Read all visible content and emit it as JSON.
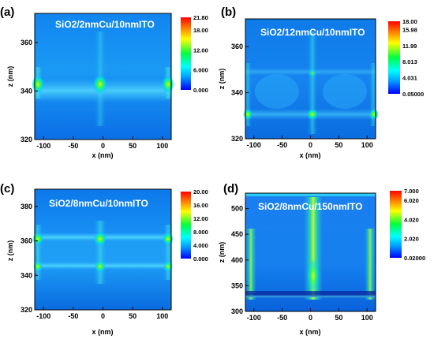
{
  "chart_data": [
    {
      "type": "heatmap",
      "panel_label": "(a)",
      "title": "SiO2/2nmCu/10nmITO",
      "xlabel": "x (nm)",
      "ylabel": "z (nm)",
      "xlim": [
        -115,
        115
      ],
      "ylim": [
        320,
        372
      ],
      "xticks": [
        "-100",
        "-50",
        "0",
        "50",
        "100"
      ],
      "xtick_values": [
        -100,
        -50,
        0,
        50,
        100
      ],
      "yticks": [
        "320",
        "340",
        "360"
      ],
      "ytick_values": [
        320,
        340,
        360
      ],
      "colorbar_ticks": [
        "21.80",
        "18.00",
        "12.00",
        "6.000",
        "0.000"
      ],
      "colorbar_values": [
        21.8,
        18.0,
        12.0,
        6.0,
        0.0
      ],
      "colorbar_range": [
        0.0,
        21.8
      ]
    },
    {
      "type": "heatmap",
      "panel_label": "(b)",
      "title": "SiO2/12nmCu/10nmITO",
      "xlabel": "x (nm)",
      "ylabel": "z (nm)",
      "xlim": [
        -115,
        115
      ],
      "ylim": [
        320,
        372
      ],
      "xticks": [
        "-100",
        "-50",
        "0",
        "50",
        "100"
      ],
      "xtick_values": [
        -100,
        -50,
        0,
        50,
        100
      ],
      "yticks": [
        "320",
        "340",
        "360"
      ],
      "ytick_values": [
        320,
        340,
        360
      ],
      "colorbar_ticks": [
        "18.00",
        "15.98",
        "11.99",
        "8.013",
        "4.031",
        "0.05000"
      ],
      "colorbar_values": [
        18.0,
        15.98,
        11.99,
        8.013,
        4.031,
        0.05
      ],
      "colorbar_range": [
        0.05,
        18.0
      ]
    },
    {
      "type": "heatmap",
      "panel_label": "(c)",
      "title": "SiO2/8nmCu/10nmITO",
      "xlabel": "x (nm)",
      "ylabel": "z (nm)",
      "xlim": [
        -115,
        115
      ],
      "ylim": [
        320,
        390
      ],
      "xticks": [
        "-100",
        "-50",
        "0",
        "50",
        "100"
      ],
      "xtick_values": [
        -100,
        -50,
        0,
        50,
        100
      ],
      "yticks": [
        "320",
        "340",
        "360",
        "380"
      ],
      "ytick_values": [
        320,
        340,
        360,
        380
      ],
      "colorbar_ticks": [
        "20.00",
        "16.00",
        "12.00",
        "8.000",
        "4.000",
        "0.000"
      ],
      "colorbar_values": [
        20.0,
        16.0,
        12.0,
        8.0,
        4.0,
        0.0
      ],
      "colorbar_range": [
        0.0,
        20.0
      ]
    },
    {
      "type": "heatmap",
      "panel_label": "(d)",
      "title": "SiO2/8nmCu/150nmITO",
      "xlabel": "x (nm)",
      "ylabel": "z (nm)",
      "xlim": [
        -115,
        115
      ],
      "ylim": [
        300,
        530
      ],
      "xticks": [
        "-100",
        "-50",
        "0",
        "50",
        "100"
      ],
      "xtick_values": [
        -100,
        -50,
        0,
        50,
        100
      ],
      "yticks": [
        "300",
        "350",
        "400",
        "450",
        "500"
      ],
      "ytick_values": [
        300,
        350,
        400,
        450,
        500
      ],
      "colorbar_ticks": [
        "7.000",
        "6.020",
        "4.020",
        "2.020",
        "0.02000"
      ],
      "colorbar_values": [
        7.0,
        6.02,
        4.02,
        2.02,
        0.02
      ],
      "colorbar_range": [
        0.02,
        7.0
      ]
    }
  ],
  "colors": {
    "background_field": "#0a6ff0",
    "colormap": [
      "#0000ff",
      "#00a0ff",
      "#00ffff",
      "#00ff40",
      "#ffff00",
      "#ff8000",
      "#ff0000"
    ]
  }
}
